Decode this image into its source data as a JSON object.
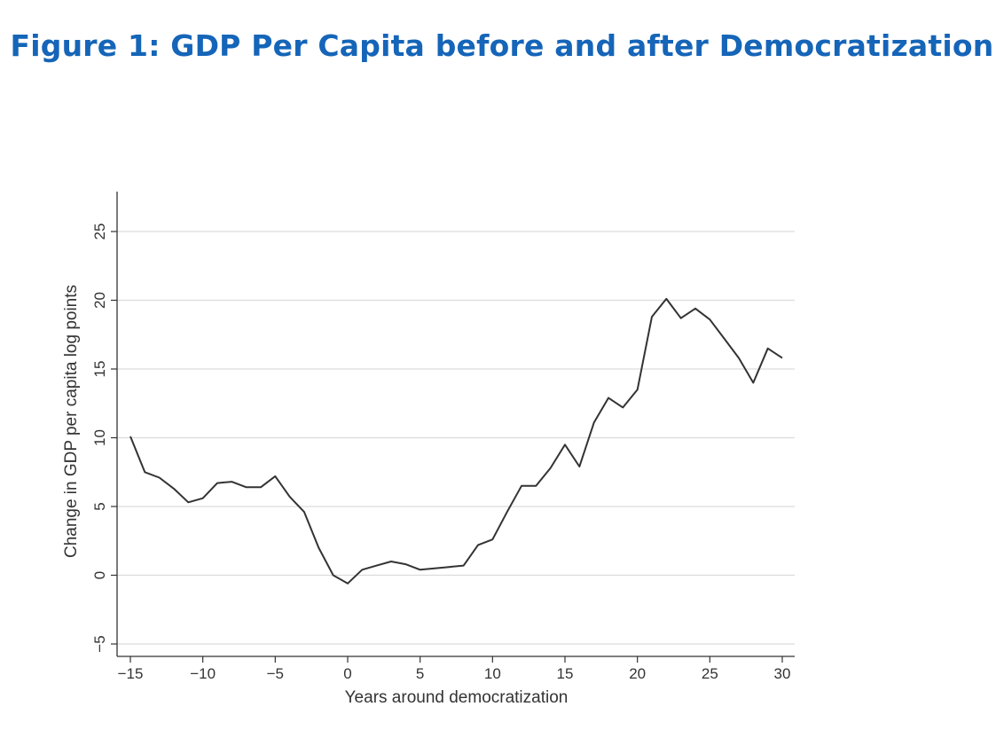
{
  "page": {
    "title": "Figure 1: GDP Per Capita before and after Democratization",
    "title_color": "#1565b8"
  },
  "chart_data": {
    "type": "line",
    "title": "",
    "xlabel": "Years around democratization",
    "ylabel": "Change in GDP per capita log points",
    "xlim": [
      -15,
      30
    ],
    "ylim": [
      -5,
      25
    ],
    "xticks": [
      -15,
      -10,
      -5,
      0,
      5,
      10,
      15,
      20,
      25,
      30
    ],
    "yticks": [
      -5,
      0,
      5,
      10,
      15,
      20,
      25
    ],
    "xtick_labels": [
      "−15",
      "−10",
      "−5",
      "0",
      "5",
      "10",
      "15",
      "20",
      "25",
      "30"
    ],
    "ytick_labels": [
      "−5",
      "0",
      "5",
      "10",
      "15",
      "20",
      "25"
    ],
    "grid": true,
    "grid_axis": "y",
    "legend": "none",
    "line_color": "#333333",
    "grid_color": "#dcdcdc",
    "x": [
      -15,
      -14,
      -13,
      -12,
      -11,
      -10,
      -9,
      -8,
      -7,
      -6,
      -5,
      -4,
      -3,
      -2,
      -1,
      0,
      1,
      2,
      3,
      4,
      5,
      6,
      7,
      8,
      9,
      10,
      11,
      12,
      13,
      14,
      15,
      16,
      17,
      18,
      19,
      20,
      21,
      22,
      23,
      24,
      25,
      26,
      27,
      28,
      29,
      30
    ],
    "y": [
      10.1,
      7.5,
      7.1,
      6.3,
      5.3,
      5.6,
      6.7,
      6.8,
      6.4,
      6.4,
      7.2,
      5.7,
      4.6,
      2.0,
      0.0,
      -0.6,
      0.4,
      0.7,
      1.0,
      0.8,
      0.4,
      0.5,
      0.6,
      0.7,
      2.2,
      2.6,
      4.6,
      6.5,
      6.5,
      7.8,
      9.5,
      7.9,
      11.1,
      12.9,
      12.2,
      13.5,
      18.8,
      20.1,
      18.7,
      19.4,
      18.6,
      17.2,
      15.8,
      14.0,
      16.5,
      15.8
    ]
  }
}
